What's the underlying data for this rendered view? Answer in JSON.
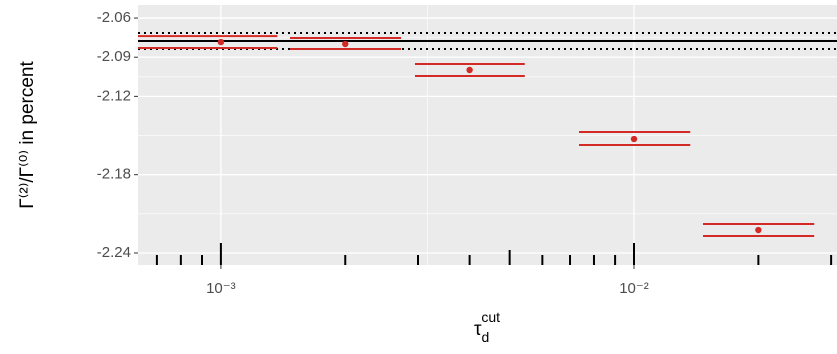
{
  "chart_data": {
    "type": "pointrange",
    "ylabel": "Γ⁽²⁾/Γ⁽⁰⁾ in percent",
    "xlabel": {
      "base": "τ",
      "sub": "d",
      "sup": "cut"
    },
    "log_x": true,
    "xlim": [
      0.00063,
      0.031
    ],
    "ylim": [
      -2.2492,
      -2.05
    ],
    "xticks": [
      {
        "value": 0.001,
        "label": "10⁻³"
      },
      {
        "value": 0.01,
        "label": "10⁻²"
      }
    ],
    "yticks": [
      -2.06,
      -2.09,
      -2.12,
      -2.18,
      -2.24
    ],
    "xminor": [
      0.0007,
      0.0008,
      0.0009,
      0.001,
      0.002,
      0.003,
      0.004,
      0.005,
      0.006,
      0.007,
      0.008,
      0.009,
      0.01,
      0.02,
      0.03
    ],
    "grid": true,
    "color": "#d42a25",
    "points": [
      {
        "x": 0.001,
        "y": -2.0784,
        "x_lo": 0.00063,
        "x_hi": 0.00137,
        "y_lo": -2.0829,
        "y_hi": -2.0738
      },
      {
        "x": 0.002,
        "y": -2.0799,
        "x_lo": 0.00147,
        "x_hi": 0.00273,
        "y_lo": -2.0837,
        "y_hi": -2.0753
      },
      {
        "x": 0.004,
        "y": -2.0998,
        "x_lo": 0.00295,
        "x_hi": 0.00544,
        "y_lo": -2.1044,
        "y_hi": -2.0952
      },
      {
        "x": 0.01,
        "y": -2.1527,
        "x_lo": 0.00736,
        "x_hi": 0.01368,
        "y_lo": -2.1573,
        "y_hi": -2.1473
      },
      {
        "x": 0.02,
        "y": -2.2224,
        "x_lo": 0.01469,
        "x_hi": 0.0273,
        "y_lo": -2.227,
        "y_hi": -2.2178
      }
    ],
    "hlines": [
      {
        "y": -2.0776,
        "style": "solid"
      },
      {
        "y": -2.0715,
        "style": "dotted"
      },
      {
        "y": -2.0837,
        "style": "dotted"
      }
    ]
  }
}
